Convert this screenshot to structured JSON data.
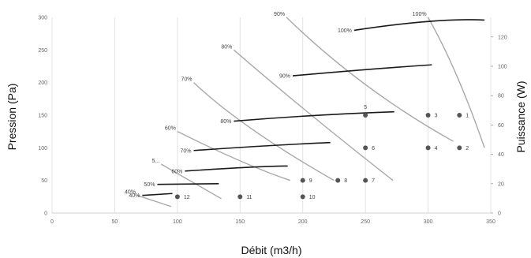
{
  "chart_data": {
    "type": "line",
    "xlabel": "Débit (m3/h)",
    "ylabel": "Pression (Pa)",
    "y2label": "Puissance (W)",
    "xlim": [
      0,
      350
    ],
    "ylim": [
      0,
      300
    ],
    "y2lim": [
      0,
      133.33
    ],
    "xticks": [
      "0",
      "50",
      "100",
      "150",
      "200",
      "250",
      "300",
      "350"
    ],
    "yticks": [
      "0",
      "50",
      "100",
      "150",
      "200",
      "250",
      "300"
    ],
    "y2ticks": [
      "0",
      "20",
      "40",
      "60",
      "80",
      "100",
      "120"
    ],
    "grid": "vertical",
    "pressure_curves": [
      {
        "label": "100%",
        "points": [
          [
            300,
            300
          ],
          [
            323,
            210
          ],
          [
            345,
            100
          ]
        ]
      },
      {
        "label": "90%",
        "points": [
          [
            187,
            300
          ],
          [
            250,
            197
          ],
          [
            320,
            110
          ]
        ]
      },
      {
        "label": "80%",
        "points": [
          [
            145,
            250
          ],
          [
            205,
            153
          ],
          [
            272,
            50
          ]
        ]
      },
      {
        "label": "70%",
        "points": [
          [
            113,
            200
          ],
          [
            160,
            128
          ],
          [
            225,
            50
          ]
        ]
      },
      {
        "label": "60%",
        "points": [
          [
            100,
            125
          ],
          [
            150,
            80
          ],
          [
            190,
            50
          ]
        ]
      },
      {
        "label": "5...",
        "points": [
          [
            87,
            75
          ],
          [
            135,
            22
          ]
        ]
      },
      {
        "label": "40%",
        "points": [
          [
            68,
            27
          ],
          [
            95,
            10
          ]
        ]
      }
    ],
    "power_curves": [
      {
        "label": "100%",
        "points": [
          [
            241,
            124.5
          ],
          [
            300,
            130.5
          ],
          [
            345,
            131.5
          ]
        ]
      },
      {
        "label": "90%",
        "points": [
          [
            192,
            93.5
          ],
          [
            250,
            97.7
          ],
          [
            303,
            101
          ]
        ]
      },
      {
        "label": "80%",
        "points": [
          [
            145,
            62.6
          ],
          [
            210,
            66.5
          ],
          [
            273,
            69
          ]
        ]
      },
      {
        "label": "70%",
        "points": [
          [
            113,
            42.6
          ],
          [
            175,
            46
          ],
          [
            222,
            48
          ]
        ]
      },
      {
        "label": "60%",
        "points": [
          [
            106,
            28.6
          ],
          [
            160,
            31.3
          ],
          [
            188,
            32
          ]
        ]
      },
      {
        "label": "50%",
        "points": [
          [
            84,
            19.5
          ],
          [
            133,
            20
          ]
        ]
      },
      {
        "label": "40%",
        "points": [
          [
            72,
            12
          ],
          [
            96,
            13.3
          ]
        ]
      }
    ],
    "operating_points": [
      {
        "label": "1",
        "x": 325,
        "y": 150
      },
      {
        "label": "2",
        "x": 325,
        "y": 100
      },
      {
        "label": "3",
        "x": 300,
        "y": 150
      },
      {
        "label": "4",
        "x": 300,
        "y": 100
      },
      {
        "label": "5",
        "x": 250,
        "y": 150
      },
      {
        "label": "6",
        "x": 250,
        "y": 100
      },
      {
        "label": "7",
        "x": 250,
        "y": 50
      },
      {
        "label": "8",
        "x": 228,
        "y": 50
      },
      {
        "label": "9",
        "x": 200,
        "y": 50
      },
      {
        "label": "10",
        "x": 200,
        "y": 25
      },
      {
        "label": "11",
        "x": 150,
        "y": 25
      },
      {
        "label": "12",
        "x": 100,
        "y": 25
      }
    ]
  }
}
